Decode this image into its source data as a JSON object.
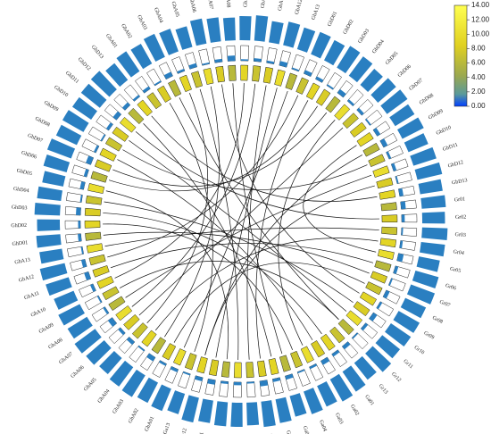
{
  "chart_data": {
    "type": "circos",
    "chromosomes": [
      "GbA01",
      "GbA02",
      "GbA03",
      "GbA04",
      "GbA05",
      "GbA06",
      "GbA07",
      "GbA08",
      "GbA09",
      "GbA10",
      "GbA11",
      "GbA12",
      "GbA13",
      "GbD01",
      "GbD02",
      "GbD03",
      "GbD04",
      "GbD05",
      "GbD06",
      "GbD07",
      "GbD08",
      "GbD09",
      "GbD10",
      "GbD11",
      "GbD12",
      "GbD13",
      "Gr01",
      "Gr02",
      "Gr03",
      "Gr04",
      "Gr05",
      "Gr06",
      "Gr07",
      "Gr08",
      "Gr09",
      "Gr10",
      "Gr11",
      "Gr12",
      "Gr13",
      "Ga01",
      "Ga02",
      "Ga03",
      "Ga04",
      "Ga05",
      "Ga06",
      "Ga07",
      "Ga08",
      "Ga09",
      "Ga10",
      "Ga11",
      "Ga12",
      "Ga13",
      "GhA01",
      "GhA02",
      "GhA03",
      "GhA04",
      "GhA05",
      "GhA06",
      "GhA07",
      "GhA08",
      "GhA09",
      "GhA10",
      "GhA11",
      "GhA12",
      "GhA13",
      "GhD01",
      "GhD02",
      "GhD03",
      "GhD04",
      "GhD05",
      "GhD06",
      "GhD07",
      "GhD08",
      "GhD09",
      "GhD10",
      "GhD11",
      "GhD12",
      "GhD13"
    ],
    "outer_track": {
      "color": "#2a7fc1",
      "lim": [
        0,
        1
      ],
      "values": [
        0.9,
        0.85,
        0.95,
        0.9,
        0.8,
        0.95,
        0.9,
        0.85,
        0.9,
        0.95,
        0.8,
        0.9,
        0.85,
        0.9,
        0.85,
        0.95,
        0.9,
        0.8,
        0.9,
        0.95,
        0.85,
        0.9,
        0.8,
        0.9,
        0.95,
        0.85,
        0.9,
        0.85,
        0.95,
        0.9,
        0.8,
        0.9,
        0.95,
        0.85,
        0.9,
        0.9,
        0.85,
        0.95,
        0.8,
        0.9,
        0.95,
        0.85,
        0.9,
        0.8,
        0.9,
        0.95,
        0.85,
        0.9,
        0.9,
        0.85,
        0.95,
        0.8,
        0.9,
        0.85,
        0.95,
        0.9,
        0.8,
        0.9,
        0.95,
        0.85,
        0.9,
        0.8,
        0.9,
        0.95,
        0.85,
        0.9,
        0.85,
        0.95,
        0.9,
        0.8,
        0.9,
        0.95,
        0.85,
        0.9,
        0.85,
        0.9,
        0.95,
        0.8
      ]
    },
    "middle_track": {
      "color": "#2a7fc1",
      "lim": [
        0,
        1
      ],
      "values": [
        0.2,
        0.1,
        0.3,
        0.15,
        0.25,
        0.1,
        0.2,
        0.35,
        0.1,
        0.2,
        0.15,
        0.3,
        0.1,
        0.25,
        0.2,
        0.1,
        0.3,
        0.15,
        0.2,
        0.1,
        0.25,
        0.3,
        0.15,
        0.2,
        0.1,
        0.25,
        0.3,
        0.2,
        0.1,
        0.15,
        0.35,
        0.2,
        0.1,
        0.25,
        0.15,
        0.3,
        0.2,
        0.1,
        0.25,
        0.2,
        0.3,
        0.15,
        0.1,
        0.25,
        0.2,
        0.35,
        0.1,
        0.2,
        0.15,
        0.3,
        0.25,
        0.1,
        0.2,
        0.15,
        0.3,
        0.1,
        0.25,
        0.2,
        0.35,
        0.15,
        0.1,
        0.2,
        0.3,
        0.25,
        0.1,
        0.2,
        0.15,
        0.3,
        0.1,
        0.25,
        0.2,
        0.35,
        0.15,
        0.1,
        0.2,
        0.3,
        0.25,
        0.15
      ]
    },
    "heat_track": {
      "values": [
        7,
        8,
        6,
        9,
        7,
        10,
        8,
        6,
        9,
        7,
        8,
        10,
        6,
        7,
        9,
        8,
        6,
        10,
        7,
        8,
        9,
        6,
        7,
        10,
        8,
        9,
        6,
        8,
        7,
        9,
        10,
        6,
        8,
        7,
        9,
        8,
        10,
        6,
        7,
        9,
        8,
        10,
        7,
        6,
        9,
        8,
        7,
        10,
        6,
        8,
        9,
        7,
        10,
        8,
        6,
        9,
        7,
        8,
        10,
        6,
        7,
        9,
        8,
        7,
        10,
        6,
        9,
        8,
        7,
        10,
        6,
        8,
        9,
        7,
        8,
        10,
        6,
        9
      ]
    },
    "links": [
      [
        "GbA03",
        "Gr12"
      ],
      [
        "GbA04",
        "GhA05"
      ],
      [
        "GbA05",
        "Ga09"
      ],
      [
        "GbA06",
        "GhA03"
      ],
      [
        "GbA07",
        "Gr09"
      ],
      [
        "GbA08",
        "Ga05"
      ],
      [
        "GbA09",
        "GhA10"
      ],
      [
        "GbA10",
        "GhA07"
      ],
      [
        "GbA12",
        "Ga11"
      ],
      [
        "GbD01",
        "GhA12"
      ],
      [
        "GbD02",
        "Ga07"
      ],
      [
        "GbD03",
        "GhD06"
      ],
      [
        "GbD05",
        "Ga03"
      ],
      [
        "GbD06",
        "GhA06"
      ],
      [
        "GbD08",
        "Gr05"
      ],
      [
        "GbD10",
        "GhD09"
      ],
      [
        "GbD12",
        "Ga12"
      ],
      [
        "Gr02",
        "GhD11"
      ],
      [
        "Gr04",
        "GhA04"
      ],
      [
        "Gr06",
        "GhA11"
      ],
      [
        "Gr08",
        "GhA02"
      ],
      [
        "Gr10",
        "GhD04"
      ],
      [
        "Gr12",
        "GhA09"
      ],
      [
        "Ga02",
        "GhD08"
      ],
      [
        "Ga04",
        "GhD02"
      ],
      [
        "Ga06",
        "GhD12"
      ],
      [
        "Ga08",
        "GbA11"
      ],
      [
        "Ga10",
        "GhD05"
      ],
      [
        "Ga12",
        "GbD09"
      ],
      [
        "GhA08",
        "GbD11"
      ],
      [
        "GhA13",
        "Gr03"
      ],
      [
        "GhD01",
        "Gr07"
      ],
      [
        "GhD03",
        "Ga01"
      ],
      [
        "GhD07",
        "GbD04"
      ],
      [
        "GhD10",
        "Gr11"
      ],
      [
        "GhD13",
        "GbD13"
      ],
      [
        "GbA02",
        "Ga13"
      ],
      [
        "GbA13",
        "GhA01"
      ]
    ],
    "colorbar": {
      "lim": [
        0,
        14
      ],
      "ticks": [
        {
          "value": 0,
          "label": "0.00"
        },
        {
          "value": 2,
          "label": "2.00"
        },
        {
          "value": 4,
          "label": "4.00"
        },
        {
          "value": 6,
          "label": "6.00"
        },
        {
          "value": 8,
          "label": "8.00"
        },
        {
          "value": 10,
          "label": "10.00"
        },
        {
          "value": 12,
          "label": "12.00"
        },
        {
          "value": 14,
          "label": "14.00"
        }
      ]
    }
  }
}
